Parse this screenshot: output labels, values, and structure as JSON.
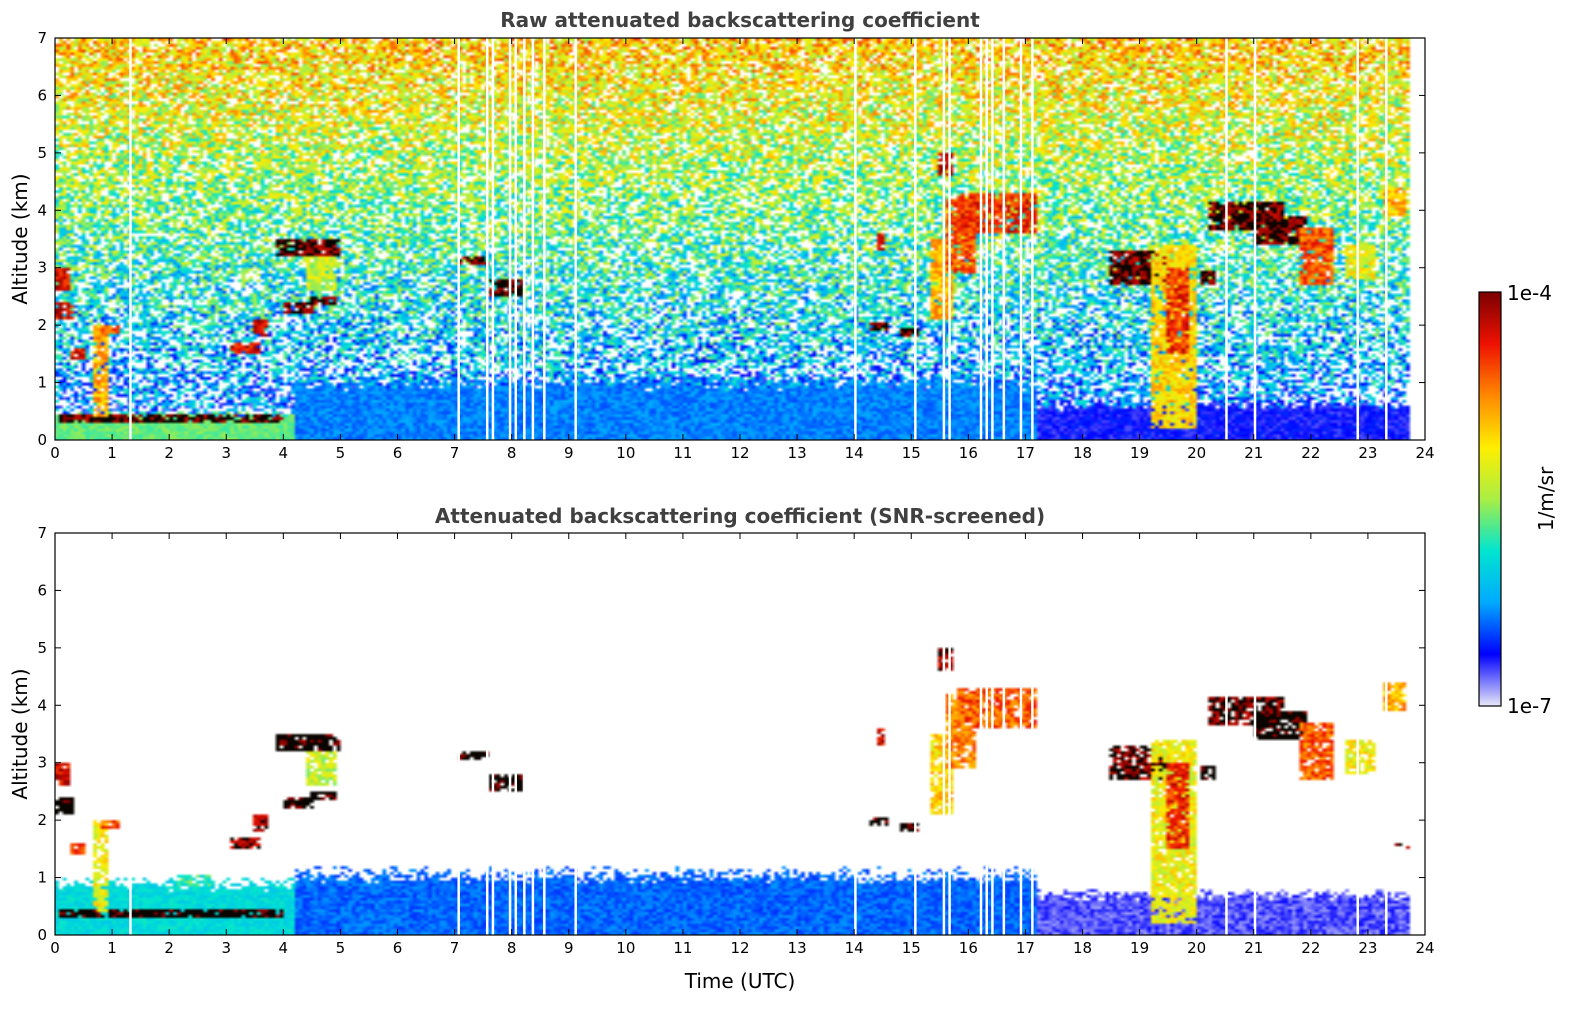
{
  "chart_data": [
    {
      "type": "heatmap",
      "id": "raw",
      "title": "Raw attenuated backscattering coefficient",
      "xlabel": "",
      "ylabel": "Altitude (km)",
      "xlim": [
        0,
        24
      ],
      "ylim": [
        0,
        7
      ],
      "xticks": [
        "0",
        "1",
        "2",
        "3",
        "4",
        "5",
        "6",
        "7",
        "8",
        "9",
        "10",
        "11",
        "12",
        "13",
        "14",
        "15",
        "16",
        "17",
        "18",
        "19",
        "20",
        "21",
        "22",
        "23",
        "24"
      ],
      "yticks": [
        "0",
        "1",
        "2",
        "3",
        "4",
        "5",
        "6",
        "7"
      ],
      "data_end_hour": 23.75,
      "noise": "high",
      "boundary_layer": [
        {
          "t0": 0.0,
          "t1": 4.2,
          "top_km": 0.45,
          "level": 0.45
        },
        {
          "t0": 4.2,
          "t1": 17.2,
          "top_km": 1.0,
          "level": 0.22
        },
        {
          "t0": 17.2,
          "t1": 23.75,
          "top_km": 0.6,
          "level": 0.12
        }
      ],
      "layers": [
        {
          "t0": 0.1,
          "t1": 4.0,
          "z0": 0.3,
          "z1": 0.45,
          "level": 1.0
        },
        {
          "t0": 0.0,
          "t1": 0.3,
          "z0": 2.6,
          "z1": 3.0,
          "level": 0.9
        },
        {
          "t0": 0.0,
          "t1": 0.35,
          "z0": 2.1,
          "z1": 2.4,
          "level": 0.9
        },
        {
          "t0": 0.3,
          "t1": 0.5,
          "z0": 1.4,
          "z1": 1.6,
          "level": 0.9
        },
        {
          "t0": 0.7,
          "t1": 0.9,
          "z0": 0.4,
          "z1": 2.0,
          "level": 0.7
        },
        {
          "t0": 0.8,
          "t1": 1.1,
          "z0": 1.85,
          "z1": 2.0,
          "level": 0.8
        },
        {
          "t0": 3.1,
          "t1": 3.6,
          "z0": 1.5,
          "z1": 1.7,
          "level": 0.9
        },
        {
          "t0": 3.5,
          "t1": 3.75,
          "z0": 1.8,
          "z1": 2.1,
          "level": 0.9
        },
        {
          "t0": 4.0,
          "t1": 4.5,
          "z0": 2.2,
          "z1": 2.4,
          "level": 1.0
        },
        {
          "t0": 4.5,
          "t1": 4.9,
          "z0": 2.35,
          "z1": 2.5,
          "level": 1.0
        },
        {
          "t0": 3.9,
          "t1": 5.0,
          "z0": 3.2,
          "z1": 3.5,
          "level": 1.0
        },
        {
          "t0": 4.4,
          "t1": 4.9,
          "z0": 2.6,
          "z1": 3.2,
          "level": 0.55
        },
        {
          "t0": 7.1,
          "t1": 7.6,
          "z0": 3.05,
          "z1": 3.2,
          "level": 1.0
        },
        {
          "t0": 7.6,
          "t1": 8.2,
          "z0": 2.5,
          "z1": 2.8,
          "level": 1.0
        },
        {
          "t0": 14.4,
          "t1": 14.5,
          "z0": 3.3,
          "z1": 3.6,
          "level": 0.9
        },
        {
          "t0": 14.3,
          "t1": 14.6,
          "z0": 1.9,
          "z1": 2.05,
          "level": 1.0
        },
        {
          "t0": 14.8,
          "t1": 15.1,
          "z0": 1.8,
          "z1": 1.95,
          "level": 1.0
        },
        {
          "t0": 15.3,
          "t1": 15.7,
          "z0": 2.1,
          "z1": 3.5,
          "level": 0.7
        },
        {
          "t0": 15.5,
          "t1": 15.7,
          "z0": 4.6,
          "z1": 5.0,
          "level": 0.95
        },
        {
          "t0": 15.6,
          "t1": 16.1,
          "z0": 2.9,
          "z1": 4.2,
          "level": 0.8
        },
        {
          "t0": 15.8,
          "t1": 17.2,
          "z0": 3.6,
          "z1": 4.3,
          "level": 0.85
        },
        {
          "t0": 18.5,
          "t1": 19.5,
          "z0": 2.7,
          "z1": 3.3,
          "level": 1.0
        },
        {
          "t0": 19.2,
          "t1": 20.0,
          "z0": 0.2,
          "z1": 3.4,
          "level": 0.65
        },
        {
          "t0": 19.5,
          "t1": 19.9,
          "z0": 1.5,
          "z1": 3.0,
          "level": 0.85
        },
        {
          "t0": 20.1,
          "t1": 20.3,
          "z0": 2.7,
          "z1": 2.95,
          "level": 1.0
        },
        {
          "t0": 20.2,
          "t1": 21.5,
          "z0": 3.65,
          "z1": 4.15,
          "level": 1.0
        },
        {
          "t0": 21.0,
          "t1": 21.9,
          "z0": 3.4,
          "z1": 3.9,
          "level": 1.0
        },
        {
          "t0": 21.8,
          "t1": 22.4,
          "z0": 2.7,
          "z1": 3.7,
          "level": 0.8
        },
        {
          "t0": 22.6,
          "t1": 23.1,
          "z0": 2.8,
          "z1": 3.4,
          "level": 0.6
        },
        {
          "t0": 23.3,
          "t1": 23.7,
          "z0": 3.9,
          "z1": 4.4,
          "level": 0.7
        }
      ],
      "gaps": [
        1.3,
        7.05,
        7.55,
        7.65,
        7.95,
        8.05,
        8.2,
        8.35,
        8.55,
        9.1,
        14.0,
        15.05,
        15.55,
        15.65,
        16.2,
        16.3,
        16.4,
        16.6,
        16.9,
        17.1,
        20.5,
        21.0,
        22.8,
        23.3
      ]
    },
    {
      "type": "heatmap",
      "id": "snr",
      "title": "Attenuated backscattering coefficient (SNR-screened)",
      "xlabel": "Time (UTC)",
      "ylabel": "Altitude (km)",
      "xlim": [
        0,
        24
      ],
      "ylim": [
        0,
        7
      ],
      "xticks": [
        "0",
        "1",
        "2",
        "3",
        "4",
        "5",
        "6",
        "7",
        "8",
        "9",
        "10",
        "11",
        "12",
        "13",
        "14",
        "15",
        "16",
        "17",
        "18",
        "19",
        "20",
        "21",
        "22",
        "23",
        "24"
      ],
      "yticks": [
        "0",
        "1",
        "2",
        "3",
        "4",
        "5",
        "6",
        "7"
      ],
      "data_end_hour": 23.75,
      "noise": "none",
      "boundary_layer": [
        {
          "t0": 0.0,
          "t1": 4.2,
          "top_km": 0.9,
          "level": 0.35
        },
        {
          "t0": 4.2,
          "t1": 17.2,
          "top_km": 1.05,
          "level": 0.2
        },
        {
          "t0": 17.2,
          "t1": 23.75,
          "top_km": 0.7,
          "level": 0.08
        }
      ],
      "layers": [
        {
          "t0": 0.1,
          "t1": 4.0,
          "z0": 0.3,
          "z1": 0.45,
          "level": 1.05
        },
        {
          "t0": 0.0,
          "t1": 0.3,
          "z0": 2.6,
          "z1": 3.0,
          "level": 0.9
        },
        {
          "t0": 0.0,
          "t1": 0.35,
          "z0": 2.1,
          "z1": 2.4,
          "level": 1.05
        },
        {
          "t0": 0.3,
          "t1": 0.5,
          "z0": 1.4,
          "z1": 1.6,
          "level": 0.85
        },
        {
          "t0": 0.7,
          "t1": 0.9,
          "z0": 0.4,
          "z1": 2.0,
          "level": 0.6
        },
        {
          "t0": 0.8,
          "t1": 1.1,
          "z0": 1.85,
          "z1": 2.0,
          "level": 0.8
        },
        {
          "t0": 2.1,
          "t1": 2.7,
          "z0": 0.85,
          "z1": 1.05,
          "level": 0.4
        },
        {
          "t0": 3.1,
          "t1": 3.6,
          "z0": 1.5,
          "z1": 1.7,
          "level": 0.95
        },
        {
          "t0": 3.5,
          "t1": 3.75,
          "z0": 1.8,
          "z1": 2.1,
          "level": 0.95
        },
        {
          "t0": 4.0,
          "t1": 4.5,
          "z0": 2.2,
          "z1": 2.4,
          "level": 1.05
        },
        {
          "t0": 4.5,
          "t1": 4.9,
          "z0": 2.35,
          "z1": 2.5,
          "level": 1.05
        },
        {
          "t0": 3.9,
          "t1": 5.0,
          "z0": 3.2,
          "z1": 3.5,
          "level": 1.05
        },
        {
          "t0": 4.4,
          "t1": 4.9,
          "z0": 2.6,
          "z1": 3.2,
          "level": 0.55
        },
        {
          "t0": 7.1,
          "t1": 7.6,
          "z0": 3.05,
          "z1": 3.2,
          "level": 1.05
        },
        {
          "t0": 7.6,
          "t1": 8.2,
          "z0": 2.5,
          "z1": 2.8,
          "level": 1.05
        },
        {
          "t0": 14.4,
          "t1": 14.5,
          "z0": 3.3,
          "z1": 3.6,
          "level": 0.9
        },
        {
          "t0": 14.3,
          "t1": 14.6,
          "z0": 1.9,
          "z1": 2.05,
          "level": 1.05
        },
        {
          "t0": 14.8,
          "t1": 15.1,
          "z0": 1.8,
          "z1": 1.95,
          "level": 1.05
        },
        {
          "t0": 15.3,
          "t1": 15.7,
          "z0": 2.1,
          "z1": 3.5,
          "level": 0.65
        },
        {
          "t0": 15.5,
          "t1": 15.7,
          "z0": 4.6,
          "z1": 5.0,
          "level": 0.95
        },
        {
          "t0": 15.6,
          "t1": 16.1,
          "z0": 2.9,
          "z1": 4.2,
          "level": 0.75
        },
        {
          "t0": 15.8,
          "t1": 17.2,
          "z0": 3.6,
          "z1": 4.3,
          "level": 0.8
        },
        {
          "t0": 18.5,
          "t1": 19.5,
          "z0": 2.7,
          "z1": 3.3,
          "level": 1.0
        },
        {
          "t0": 19.2,
          "t1": 20.0,
          "z0": 0.2,
          "z1": 3.4,
          "level": 0.6
        },
        {
          "t0": 19.5,
          "t1": 19.9,
          "z0": 1.5,
          "z1": 3.0,
          "level": 0.85
        },
        {
          "t0": 20.1,
          "t1": 20.3,
          "z0": 2.7,
          "z1": 2.95,
          "level": 1.05
        },
        {
          "t0": 20.2,
          "t1": 21.5,
          "z0": 3.65,
          "z1": 4.15,
          "level": 1.0
        },
        {
          "t0": 21.0,
          "t1": 21.9,
          "z0": 3.4,
          "z1": 3.9,
          "level": 1.05
        },
        {
          "t0": 21.8,
          "t1": 22.4,
          "z0": 2.7,
          "z1": 3.7,
          "level": 0.8
        },
        {
          "t0": 22.6,
          "t1": 23.1,
          "z0": 2.8,
          "z1": 3.4,
          "level": 0.6
        },
        {
          "t0": 23.3,
          "t1": 23.7,
          "z0": 3.9,
          "z1": 4.4,
          "level": 0.7
        },
        {
          "t0": 23.5,
          "t1": 23.75,
          "z0": 1.5,
          "z1": 1.6,
          "level": 0.95
        }
      ],
      "gaps": [
        1.3,
        7.05,
        7.55,
        7.65,
        7.95,
        8.05,
        8.2,
        8.35,
        8.55,
        9.1,
        14.0,
        15.05,
        15.55,
        15.65,
        16.2,
        16.3,
        16.4,
        16.6,
        16.9,
        17.1,
        20.5,
        21.0,
        22.8,
        23.3
      ]
    }
  ],
  "colorbar": {
    "label": "1/m/sr",
    "max_label": "1e-4",
    "min_label": "1e-7",
    "colors": [
      "#e8e8f8",
      "#0000ff",
      "#00aaff",
      "#00e5d0",
      "#aaee44",
      "#ffee00",
      "#ff8800",
      "#ee1100",
      "#7a0000"
    ]
  }
}
